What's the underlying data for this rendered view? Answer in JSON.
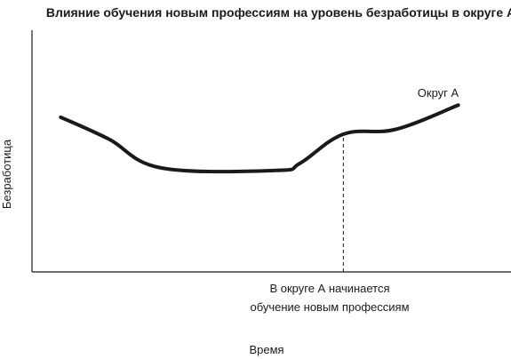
{
  "chart_data": {
    "type": "line",
    "title": "Влияние обучения новым профессиям на уровень безработицы в округе А",
    "xlabel": "Время",
    "ylabel": "Безработица",
    "xlim": [
      0,
      100
    ],
    "ylim": [
      0,
      100
    ],
    "grid": false,
    "legend": "none",
    "axis_ticks": false,
    "series": [
      {
        "name": "Округ А",
        "color": "#1a1a1a",
        "x": [
          6,
          16,
          27,
          51,
          56,
          65,
          76,
          89
        ],
        "y": [
          64,
          55,
          43,
          42,
          45,
          57,
          59,
          69
        ]
      }
    ],
    "annotations": [
      {
        "x": 65,
        "style": "dashed-vertical",
        "lines": [
          "В округе А начинается",
          "обучение новым профессиям"
        ]
      }
    ]
  }
}
